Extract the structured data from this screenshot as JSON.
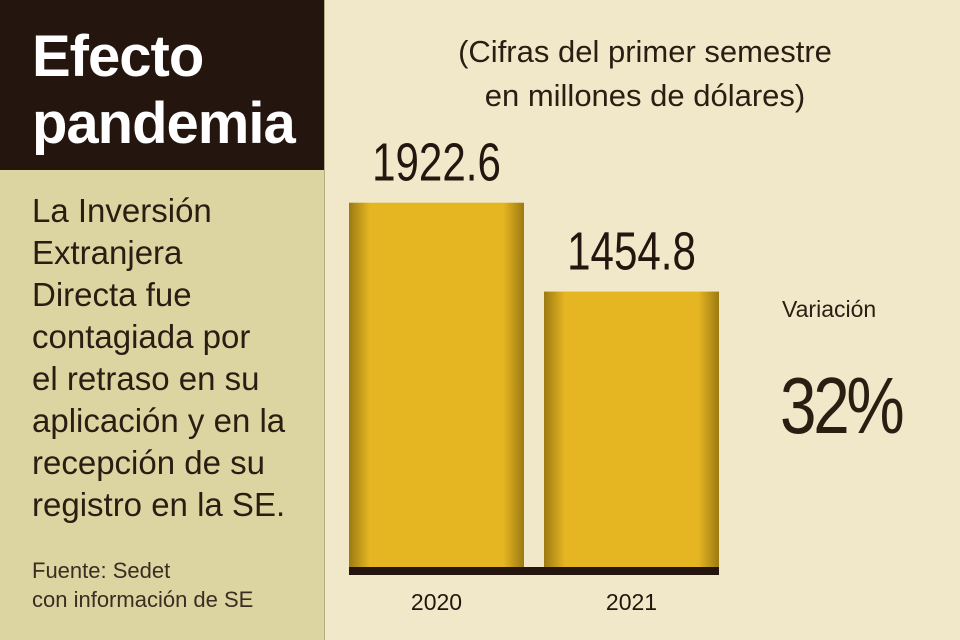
{
  "title": {
    "line1": "Efecto",
    "line2": "pandemia"
  },
  "description": [
    "La Inversión",
    "Extranjera",
    "Directa fue",
    "contagiada por",
    "el retraso en su",
    "aplicación y en la",
    "recepción de su",
    "registro en la SE."
  ],
  "source": [
    "Fuente: Sedet",
    "con información de SE"
  ],
  "chart_data": {
    "type": "bar",
    "subtitle": [
      "(Cifras del primer semestre",
      "en millones de dólares)"
    ],
    "categories": [
      "2020",
      "2021"
    ],
    "values": [
      1922.6,
      1454.8
    ],
    "value_labels": [
      "1922.6",
      "1454.8"
    ],
    "ylim": [
      0,
      2000
    ],
    "grid": false,
    "xlabel": "",
    "ylabel": "",
    "bar_color": "#e6b622",
    "bar_edge_color": "#9c7a12",
    "axis_color": "#24150f"
  },
  "variation": {
    "label": "Variación",
    "value": "32%"
  }
}
